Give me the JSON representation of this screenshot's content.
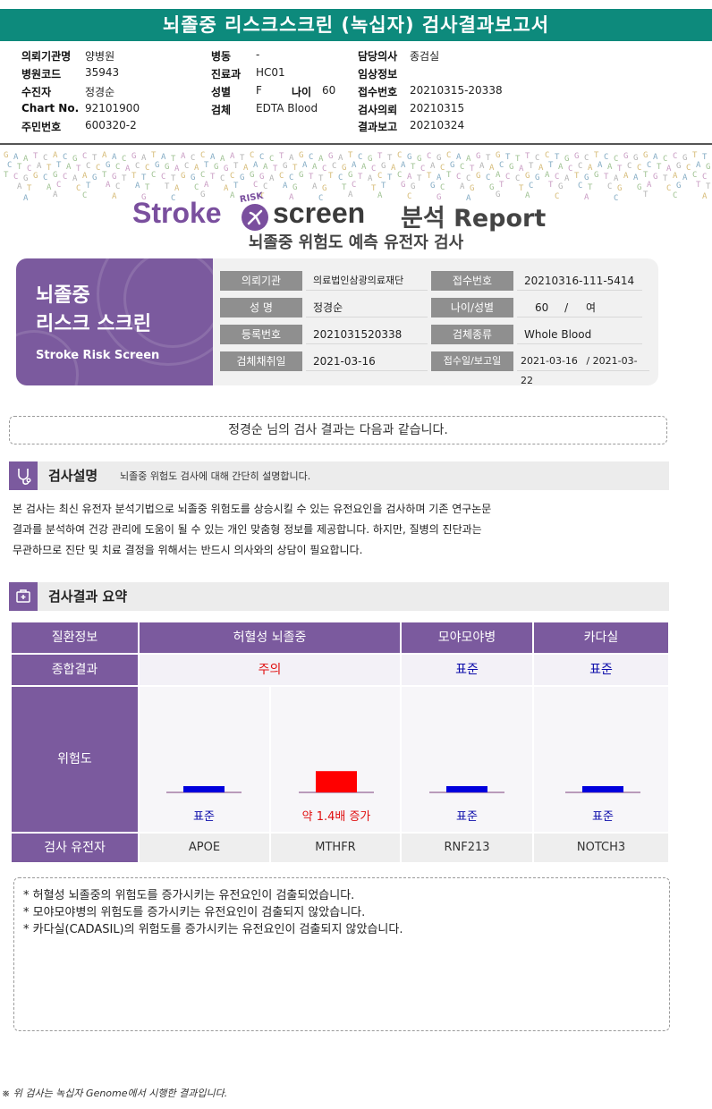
{
  "report": {
    "title": "뇌졸중 리스크스크린 (녹십자) 검사결과보고서"
  },
  "header": {
    "col1": [
      {
        "label": "의뢰기관명",
        "value": "양병원"
      },
      {
        "label": "병원코드",
        "value": "35943"
      },
      {
        "label": "수진자",
        "value": "정경순"
      },
      {
        "label": "Chart No.",
        "value": "92101900"
      },
      {
        "label": "주민번호",
        "value": "600320-2"
      }
    ],
    "col2": [
      {
        "label": "병동",
        "value": "-"
      },
      {
        "label": "진료과",
        "value": "HC01"
      },
      {
        "label": "성별",
        "value": "F"
      },
      {
        "label": "검체",
        "value": "EDTA Blood"
      }
    ],
    "age": {
      "label": "나이",
      "value": "60"
    },
    "col3": [
      {
        "label": "담당의사",
        "value": "종검실"
      },
      {
        "label": "임상정보",
        "value": ""
      },
      {
        "label": "접수번호",
        "value": "20210315-20338"
      },
      {
        "label": "검사의뢰",
        "value": "20210315"
      },
      {
        "label": "결과보고",
        "value": "20210324"
      }
    ]
  },
  "brand": {
    "stroke": "Stroke",
    "risk": "RISK",
    "screen": "screen",
    "report": "분석 Report",
    "subtitle": "뇌졸중 위험도 예측 유전자 검사"
  },
  "card": {
    "title_line1": "뇌졸중",
    "title_line2": "리스크 스크린",
    "title_en": "Stroke Risk Screen",
    "fields": {
      "institution_label": "의뢰기관",
      "institution": "의료법인삼광의료재단",
      "receipt_label": "접수번호",
      "receipt": "20210316-111-5414",
      "name_label": "성 명",
      "name": "정경순",
      "age_sex_label": "나이/성별",
      "age": "60",
      "age_sep": "/",
      "sex": "여",
      "reg_label": "등록번호",
      "reg": "2021031520338",
      "sample_label": "검체종류",
      "sample": "Whole Blood",
      "collect_label": "검체채취일",
      "collect": "2021-03-16",
      "dates_label": "접수일/보고일",
      "received": "2021-03-16",
      "date_sep": "/",
      "reported": "2021-03-22"
    }
  },
  "greeting": "정경순 님의 검사 결과는 다음과 같습니다.",
  "section1": {
    "title": "검사설명",
    "desc": "뇌졸중 위험도 검사에 대해 간단히 설명합니다.",
    "body": [
      "본 검사는 최신 유전자 분석기법으로 뇌졸중 위험도를 상승시킬 수 있는 유전요인을 검사하며 기존 연구논문",
      "결과를 분석하여 건강  관리에 도움이 될 수 있는 개인 맞춤형 정보를 제공합니다. 하지만, 질병의 진단과는",
      "무관하므로 진단 및 치료 결정을 위해서는 반드시 의사와의 상담이 필요합니다."
    ]
  },
  "section2": {
    "title": "검사결과 요약"
  },
  "results": {
    "row_labels": {
      "disease": "질환정보",
      "overall": "종합결과",
      "risk": "위험도",
      "gene": "검사 유전자"
    },
    "diseases": [
      "허혈성 뇌졸중",
      "모야모야병",
      "카다실"
    ],
    "overall": [
      {
        "text": "주의",
        "color": "#e01010"
      },
      {
        "text": "표준",
        "color": "#0a0aaa"
      },
      {
        "text": "표준",
        "color": "#0a0aaa"
      }
    ],
    "genes": [
      {
        "gene": "APOE",
        "risk_label": "표준",
        "level": 1.0,
        "bar_color": "#0000dd",
        "label_color": "#0a0aaa"
      },
      {
        "gene": "MTHFR",
        "risk_label": "약 1.4배 증가",
        "level": 1.4,
        "bar_color": "#ff0000",
        "label_color": "#e01010"
      },
      {
        "gene": "RNF213",
        "risk_label": "표준",
        "level": 1.0,
        "bar_color": "#0000dd",
        "label_color": "#0a0aaa"
      },
      {
        "gene": "NOTCH3",
        "risk_label": "표준",
        "level": 1.0,
        "bar_color": "#0000dd",
        "label_color": "#0a0aaa"
      }
    ]
  },
  "notes": [
    "* 허혈성 뇌졸중의 위험도를 증가시키는 유전요인이 검출되었습니다.",
    "* 모야모야병의 위험도를 증가시키는 유전요인이 검출되지 않았습니다.",
    "* 카다실(CADASIL)의 위험도를 증가시키는 유전요인이 검출되지 않았습니다."
  ],
  "footer": "※ 위 검사는 녹십자 Genome에서 시행한 결과입니다.",
  "dna_letters": "GCTATCACGTAGCTCATGCACGTACCATCGAGTACGCATGCTACTTGCAGCTATACGCAGCTCAGTAGCATCTAGCAGCAGCTATGCATCGAGCATACTGCTAGCTAGCATGCAT"
}
